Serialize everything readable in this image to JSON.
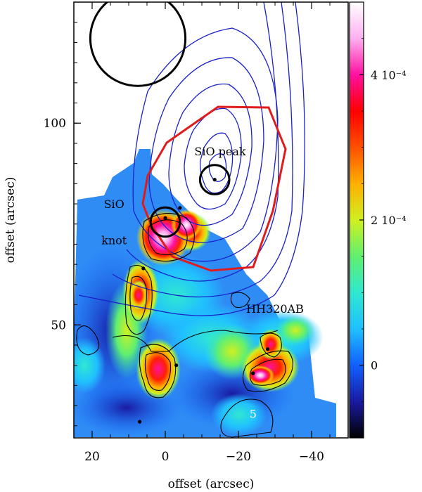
{
  "chart_data": {
    "type": "heatmap",
    "xlabel": "offset (arcsec)",
    "ylabel": "offset (arcsec)",
    "xlim": [
      25,
      -50
    ],
    "ylim": [
      22,
      130
    ],
    "x_ticks": [
      20,
      0,
      -20,
      -40
    ],
    "x_tick_labels": [
      "20",
      "0",
      "−20",
      "−40"
    ],
    "y_ticks": [
      50,
      100
    ],
    "y_tick_labels": [
      "50",
      "100"
    ],
    "colorbar": {
      "range": [
        -0.0001,
        0.0005
      ],
      "ticks": [
        0,
        0.0002,
        0.0004
      ],
      "tick_labels": [
        "0",
        "2 10⁻⁴",
        "4 10⁻⁴"
      ],
      "colors": [
        "#000000",
        "#1a1aa0",
        "#1060ff",
        "#20c0ff",
        "#30e8d0",
        "#60f070",
        "#d0f020",
        "#ffb000",
        "#ff5000",
        "#ff0000",
        "#ff10a0",
        "#ffb0f0",
        "#ffffff"
      ]
    },
    "annotations": [
      {
        "text": "SiO peak",
        "x": -15,
        "y": 92
      },
      {
        "text": "SiO",
        "x": 14,
        "y": 79
      },
      {
        "text": "knot",
        "x": 14,
        "y": 70
      },
      {
        "text": "HH320AB",
        "x": -30,
        "y": 53
      },
      {
        "text": "5",
        "x": -24,
        "y": 27
      }
    ],
    "circles": [
      {
        "x": 7.5,
        "y": 121,
        "r": 13
      },
      {
        "x": -13.5,
        "y": 86,
        "r": 4
      },
      {
        "x": 0,
        "y": 75.5,
        "r": 4
      }
    ],
    "markers": [
      {
        "x": -13.5,
        "y": 86
      },
      {
        "x": 0,
        "y": 76.5
      },
      {
        "x": -4,
        "y": 79
      },
      {
        "x": 6,
        "y": 64
      },
      {
        "x": -3,
        "y": 40
      },
      {
        "x": -28,
        "y": 44
      },
      {
        "x": -24,
        "y": 38
      },
      {
        "x": 7,
        "y": 26
      }
    ]
  }
}
